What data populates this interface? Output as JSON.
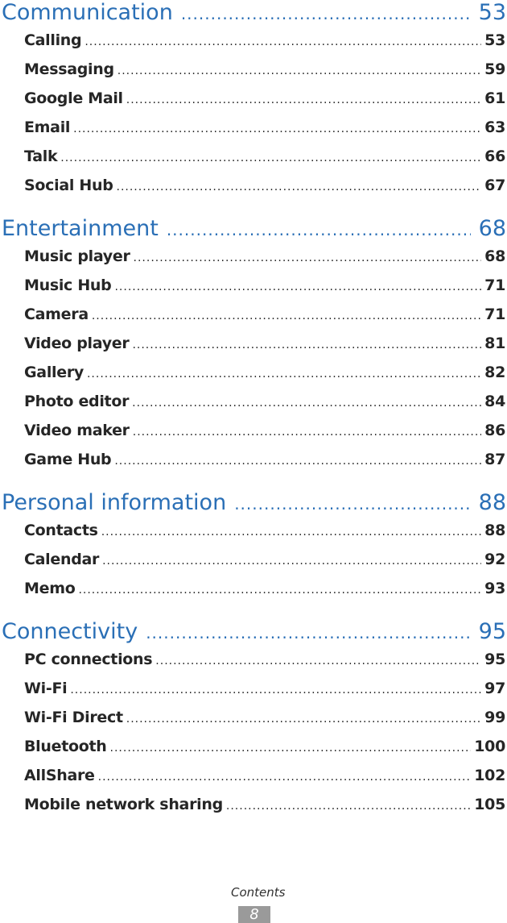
{
  "sections": [
    {
      "title": "Communication",
      "page": "53",
      "entries": [
        {
          "label": "Calling",
          "page": "53"
        },
        {
          "label": "Messaging",
          "page": "59"
        },
        {
          "label": "Google Mail",
          "page": "61"
        },
        {
          "label": "Email",
          "page": "63"
        },
        {
          "label": "Talk",
          "page": "66"
        },
        {
          "label": "Social Hub",
          "page": "67"
        }
      ]
    },
    {
      "title": "Entertainment",
      "page": "68",
      "entries": [
        {
          "label": "Music player",
          "page": "68"
        },
        {
          "label": "Music Hub",
          "page": "71"
        },
        {
          "label": "Camera",
          "page": "71"
        },
        {
          "label": "Video player",
          "page": "81"
        },
        {
          "label": "Gallery",
          "page": "82"
        },
        {
          "label": "Photo editor",
          "page": "84"
        },
        {
          "label": "Video maker",
          "page": "86"
        },
        {
          "label": "Game Hub",
          "page": "87"
        }
      ]
    },
    {
      "title": "Personal information",
      "page": "88",
      "entries": [
        {
          "label": "Contacts",
          "page": "88"
        },
        {
          "label": "Calendar",
          "page": "92"
        },
        {
          "label": "Memo",
          "page": "93"
        }
      ]
    },
    {
      "title": "Connectivity",
      "page": "95",
      "entries": [
        {
          "label": "PC connections",
          "page": "95"
        },
        {
          "label": "Wi-Fi",
          "page": "97"
        },
        {
          "label": "Wi-Fi Direct",
          "page": "99"
        },
        {
          "label": "Bluetooth",
          "page": "100"
        },
        {
          "label": "AllShare",
          "page": "102"
        },
        {
          "label": "Mobile network sharing",
          "page": "105"
        }
      ]
    }
  ],
  "footer": {
    "label": "Contents",
    "page_number": "8"
  },
  "colors": {
    "heading": "#2a6fb6",
    "entry": "#262626",
    "page_box": "#9a9a9a"
  }
}
